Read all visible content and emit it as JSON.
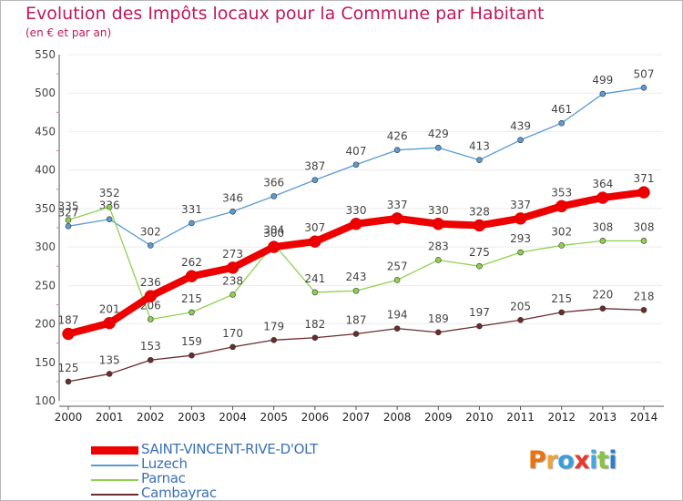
{
  "header": {
    "title": "Evolution des Impôts locaux pour la Commune par Habitant",
    "subtitle": "(en € et par an)"
  },
  "logo": {
    "text": "Proxiti",
    "colors": [
      "#e9730f",
      "#f0a330",
      "#3a9fd8",
      "#e43a2d",
      "#45a8e0",
      "#86c541",
      "#2f7ec6"
    ]
  },
  "chart_data": {
    "type": "line",
    "x": [
      2000,
      2001,
      2002,
      2003,
      2004,
      2005,
      2006,
      2007,
      2008,
      2009,
      2010,
      2011,
      2012,
      2013,
      2014
    ],
    "ylim": [
      100,
      550
    ],
    "yticks": [
      100,
      150,
      200,
      250,
      300,
      350,
      400,
      450,
      500,
      550
    ],
    "grid": "horizontal",
    "legend_position": "bottom-left",
    "series": [
      {
        "name": "SAINT-VINCENT-RIVE-D'OLT",
        "color": "#ee0000",
        "emphasis": true,
        "values": [
          187,
          201,
          236,
          262,
          273,
          300,
          307,
          330,
          337,
          330,
          328,
          337,
          353,
          364,
          371
        ]
      },
      {
        "name": "Luzech",
        "color": "#5b9bd5",
        "values": [
          327,
          336,
          302,
          331,
          346,
          366,
          387,
          407,
          426,
          429,
          413,
          439,
          461,
          499,
          507
        ]
      },
      {
        "name": "Parnac",
        "color": "#8fd14f",
        "values": [
          335,
          352,
          206,
          215,
          238,
          304,
          241,
          243,
          257,
          283,
          275,
          293,
          302,
          308,
          308
        ]
      },
      {
        "name": "Cambayrac",
        "color": "#6b2c2c",
        "values": [
          125,
          135,
          153,
          159,
          170,
          179,
          182,
          187,
          194,
          189,
          197,
          205,
          215,
          220,
          218
        ]
      }
    ]
  }
}
